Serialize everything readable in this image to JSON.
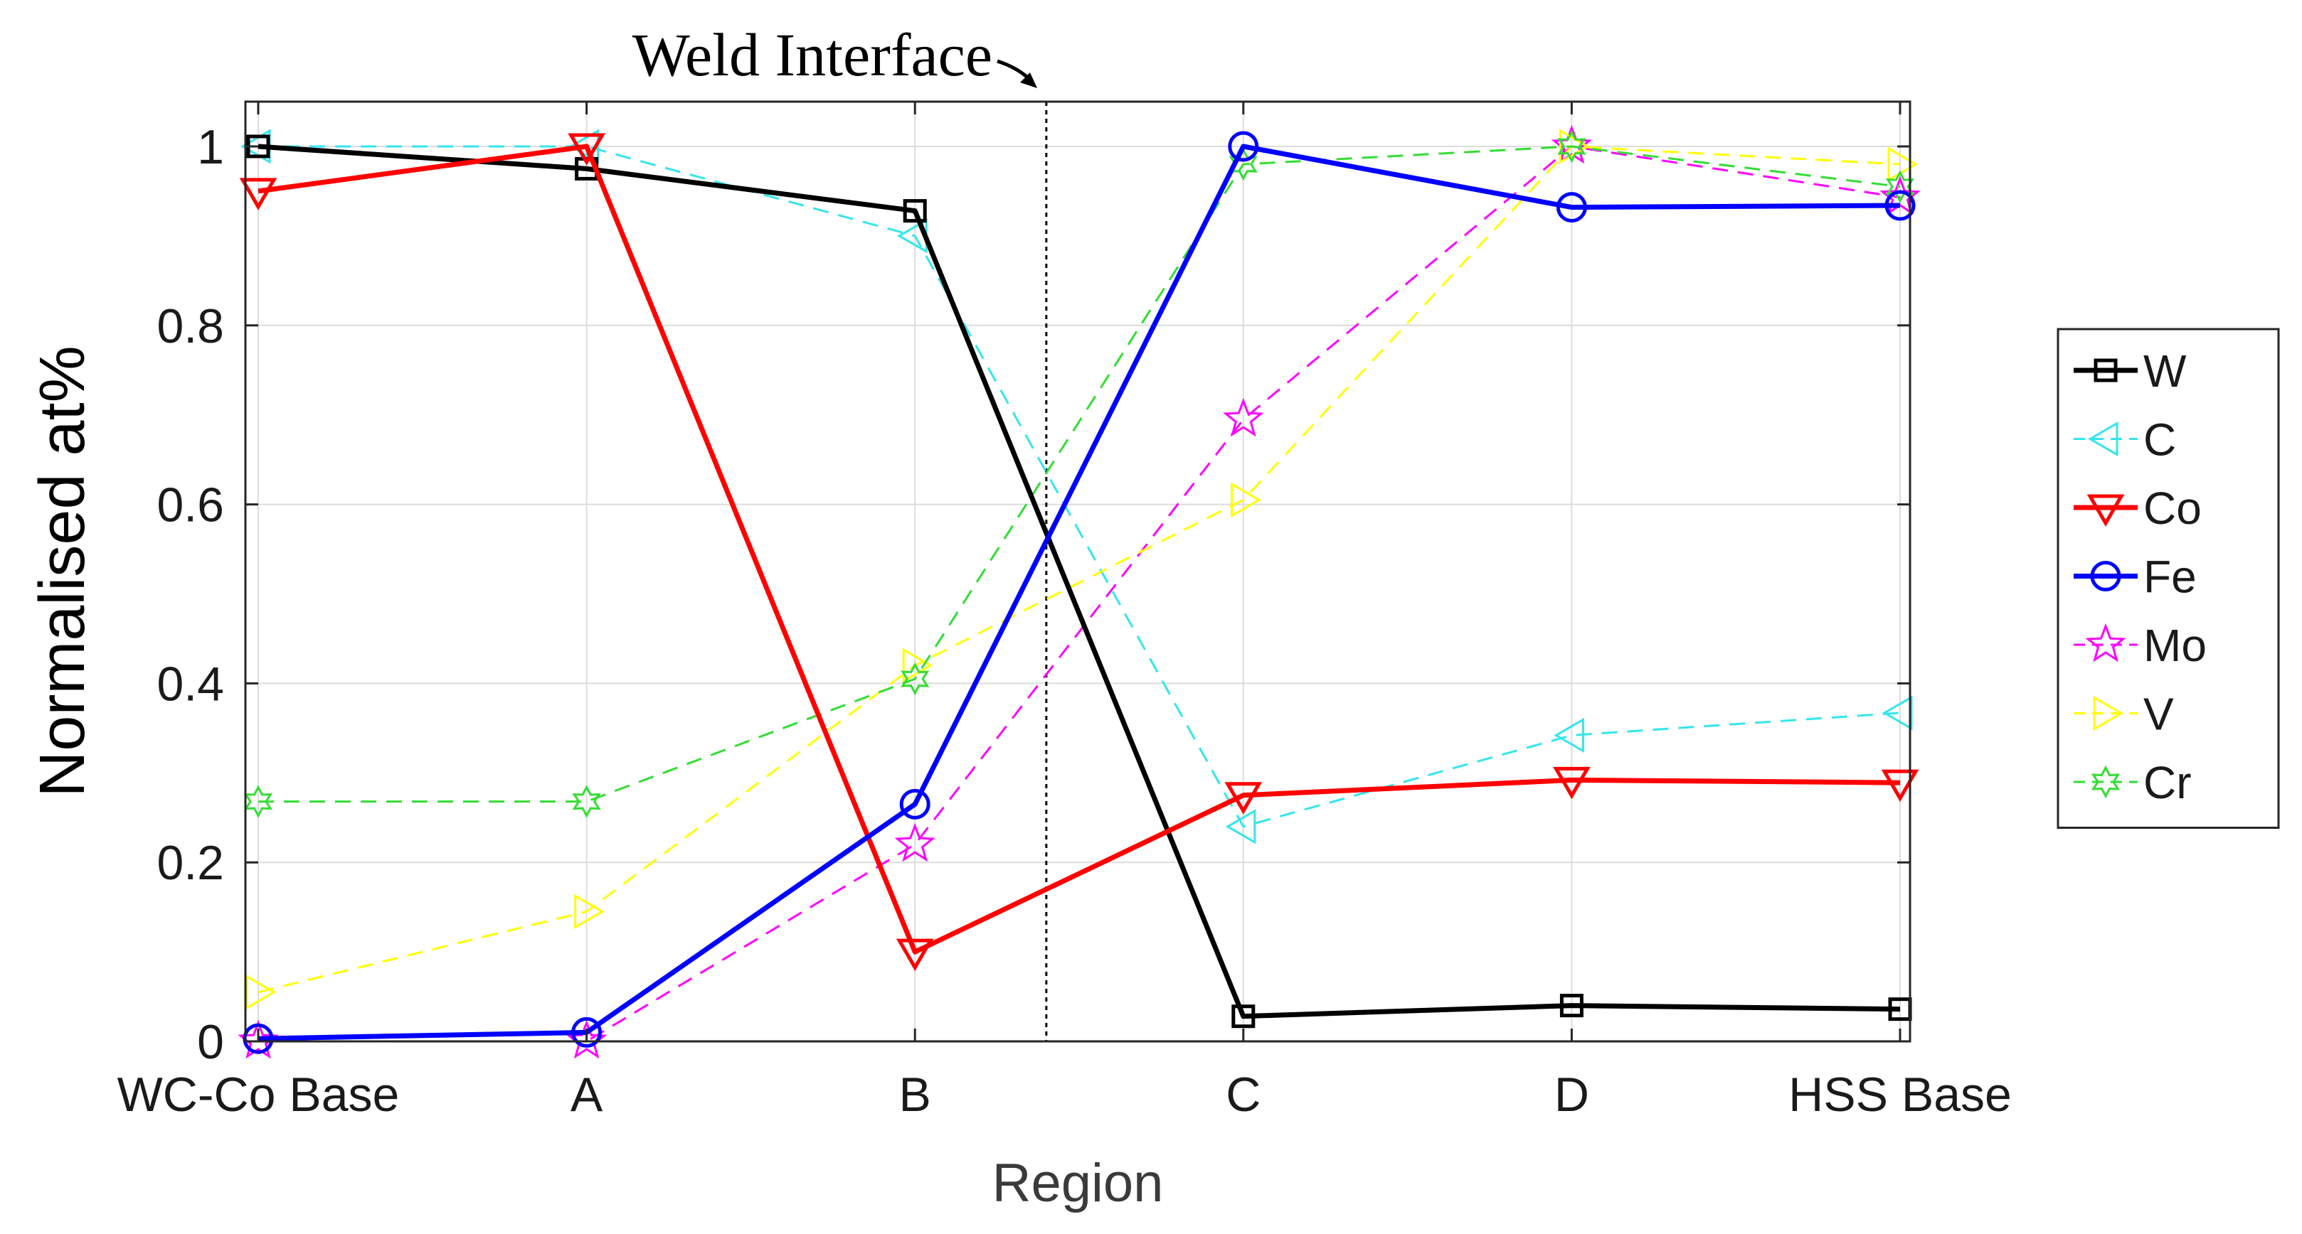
{
  "chart_data": {
    "type": "line",
    "title": "",
    "xlabel": "Region",
    "ylabel": "Normalised at%",
    "categories": [
      "WC-Co Base",
      "A",
      "B",
      "C",
      "D",
      "HSS Base"
    ],
    "ylim": [
      0,
      1.05
    ],
    "yticks": [
      0,
      0.2,
      0.4,
      0.6,
      0.8,
      1
    ],
    "ytick_labels": [
      "0",
      "0.2",
      "0.4",
      "0.6",
      "0.8",
      "1"
    ],
    "grid": true,
    "legend_position": "outside-right",
    "annotation": {
      "text": "Weld Interface",
      "x_category_position": 2.4
    },
    "series": [
      {
        "name": "W",
        "color": "#000000",
        "marker": "square",
        "style": "solid",
        "values": [
          1.0,
          0.975,
          0.928,
          0.028,
          0.04,
          0.036
        ]
      },
      {
        "name": "C",
        "color": "#33e6ec",
        "marker": "triangle-left",
        "style": "dashed",
        "values": [
          1.0,
          1.0,
          0.9,
          0.24,
          0.342,
          0.367
        ]
      },
      {
        "name": "Co",
        "color": "#ff0000",
        "marker": "triangle-down",
        "style": "solid",
        "values": [
          0.95,
          1.0,
          0.1,
          0.275,
          0.292,
          0.289
        ]
      },
      {
        "name": "Fe",
        "color": "#0000ff",
        "marker": "circle",
        "style": "solid",
        "values": [
          0.003,
          0.01,
          0.265,
          1.0,
          0.932,
          0.934
        ]
      },
      {
        "name": "Mo",
        "color": "#ff00ff",
        "marker": "star",
        "style": "dashed",
        "values": [
          0.0,
          0.0,
          0.22,
          0.695,
          1.0,
          0.943
        ]
      },
      {
        "name": "V",
        "color": "#ffff00",
        "marker": "triangle-right",
        "style": "dashed",
        "values": [
          0.055,
          0.145,
          0.42,
          0.605,
          1.0,
          0.98
        ]
      },
      {
        "name": "Cr",
        "color": "#33dd33",
        "marker": "hexagram",
        "style": "dashed",
        "values": [
          0.268,
          0.268,
          0.405,
          0.98,
          1.0,
          0.955
        ]
      }
    ]
  }
}
